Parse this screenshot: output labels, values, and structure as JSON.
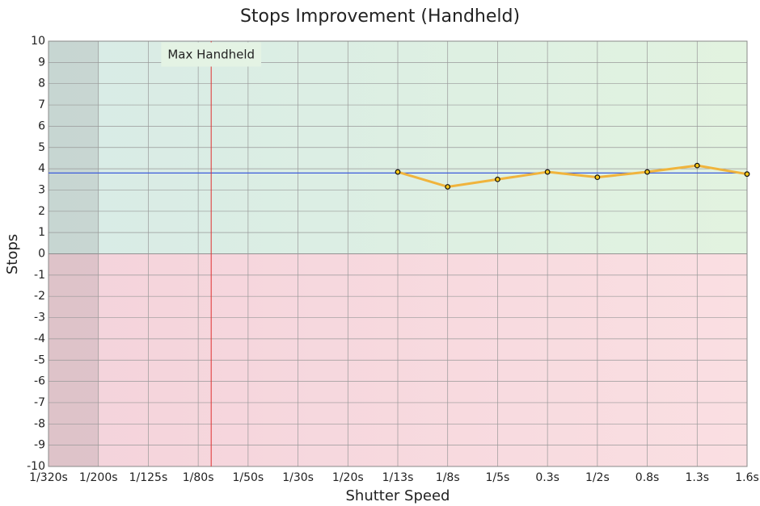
{
  "chart_data": {
    "type": "line",
    "title": "Stops Improvement (Handheld)",
    "x_label": "Shutter Speed",
    "y_label": "Stops",
    "categories": [
      "1/320s",
      "1/200s",
      "1/125s",
      "1/80s",
      "1/50s",
      "1/30s",
      "1/20s",
      "1/13s",
      "1/8s",
      "1/5s",
      "0.3s",
      "1/2s",
      "0.8s",
      "1.3s",
      "1.6s"
    ],
    "values": [
      null,
      null,
      null,
      null,
      null,
      null,
      null,
      3.85,
      3.15,
      3.5,
      3.85,
      3.6,
      3.85,
      4.15,
      3.75
    ],
    "color": "#f0b43c",
    "reference_line": {
      "value": 3.8,
      "color": "#3b5bdb"
    },
    "annotation": {
      "text": "Max Handheld",
      "x": 3.26,
      "color": "#e03131"
    },
    "ylim": [
      -10,
      10
    ],
    "yticks": [
      -10,
      -9,
      -8,
      -7,
      -6,
      -5,
      -4,
      -3,
      -2,
      -1,
      0,
      1,
      2,
      3,
      4,
      5,
      6,
      7,
      8,
      9,
      10
    ],
    "grid": true
  }
}
